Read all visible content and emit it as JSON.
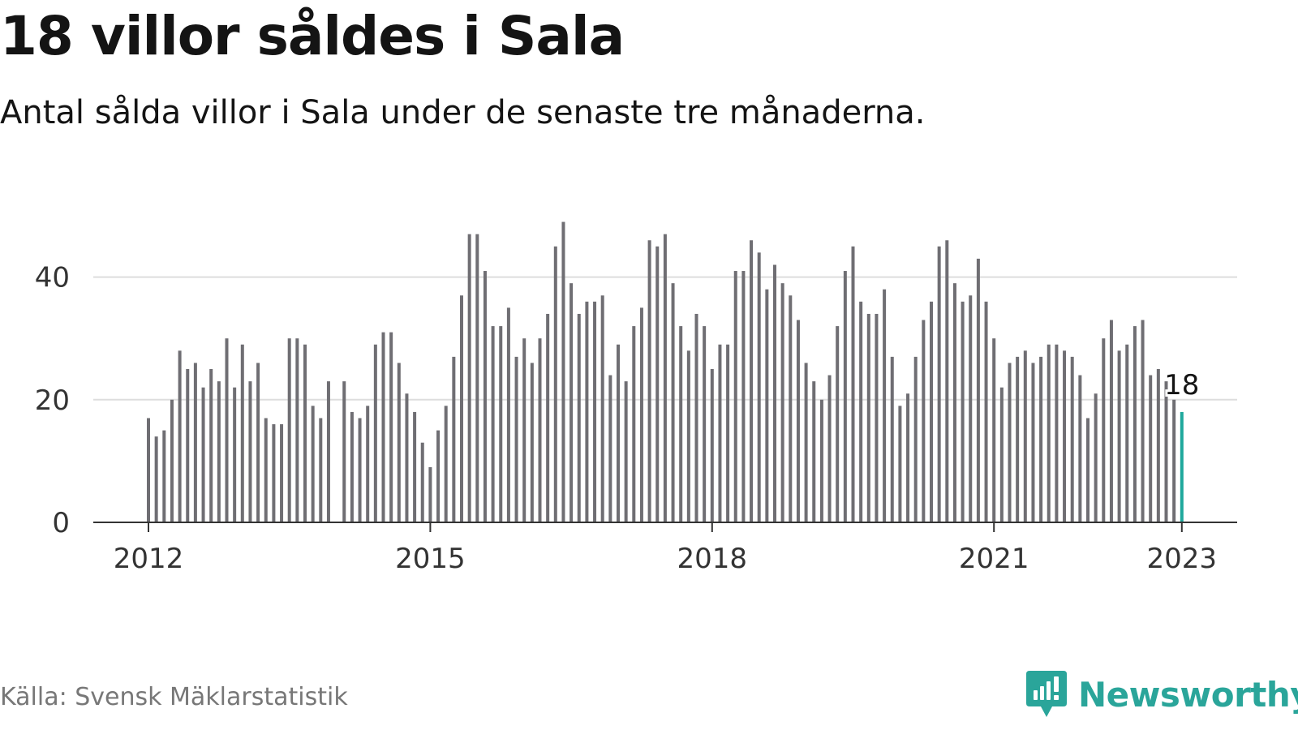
{
  "title": "18 villor såldes i Sala",
  "subtitle": "Antal sålda villor i Sala under de senaste tre månaderna.",
  "source": "Källa: Svensk Mäklarstatistik",
  "brand": {
    "name": "Newsworthy",
    "icon": "newsworthy-logo-icon",
    "color": "#2aa59a"
  },
  "chart_data": {
    "type": "bar",
    "x_start": "2012-01",
    "x_tick_labels": [
      "2012",
      "2015",
      "2018",
      "2021",
      "2023"
    ],
    "y_ticks": [
      0,
      20,
      40
    ],
    "ylim": [
      0,
      50
    ],
    "grid": true,
    "bar_color": "#6f6e73",
    "highlight_color": "#1fa89c",
    "highlight_label": "18",
    "values": [
      17,
      14,
      15,
      20,
      28,
      25,
      26,
      22,
      25,
      23,
      30,
      22,
      29,
      23,
      26,
      17,
      16,
      16,
      30,
      30,
      29,
      19,
      17,
      23,
      null,
      23,
      18,
      17,
      19,
      29,
      31,
      31,
      26,
      21,
      18,
      13,
      9,
      15,
      19,
      27,
      37,
      47,
      47,
      41,
      32,
      32,
      35,
      27,
      30,
      26,
      30,
      34,
      45,
      49,
      39,
      34,
      36,
      36,
      37,
      24,
      29,
      23,
      32,
      35,
      46,
      45,
      47,
      39,
      32,
      28,
      34,
      32,
      25,
      29,
      29,
      41,
      41,
      46,
      44,
      38,
      42,
      39,
      37,
      33,
      26,
      23,
      20,
      24,
      32,
      41,
      45,
      36,
      34,
      34,
      38,
      27,
      19,
      21,
      27,
      33,
      36,
      45,
      46,
      39,
      36,
      37,
      43,
      36,
      30,
      22,
      26,
      27,
      28,
      26,
      27,
      29,
      29,
      28,
      27,
      24,
      17,
      21,
      30,
      33,
      28,
      29,
      32,
      33,
      24,
      25,
      23,
      20,
      18
    ]
  }
}
